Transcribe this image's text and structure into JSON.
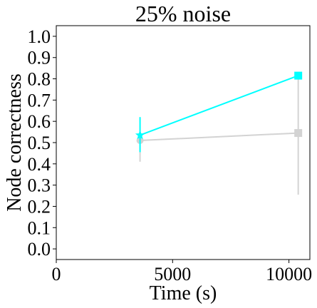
{
  "chart_data": {
    "type": "line",
    "title": "25% noise",
    "xlabel": "Time (s)",
    "ylabel": "Node correctness",
    "xlim": [
      0,
      10900
    ],
    "ylim": [
      -0.05,
      1.05
    ],
    "x_ticks": [
      0,
      5000,
      10000
    ],
    "x_tick_labels": [
      "0",
      "5000",
      "10000"
    ],
    "y_ticks": [
      0.0,
      0.1,
      0.2,
      0.3,
      0.4,
      0.5,
      0.6,
      0.7,
      0.8,
      0.9,
      1.0
    ],
    "y_tick_labels": [
      "0.0",
      "0.1",
      "0.2",
      "0.3",
      "0.4",
      "0.5",
      "0.6",
      "0.7",
      "0.8",
      "0.9",
      "1.0"
    ],
    "grid": false,
    "legend": "none",
    "series": [
      {
        "color": "#d3d3d3",
        "markers": [
          "circle",
          "square"
        ],
        "points": [
          {
            "x": 3600,
            "y": 0.51,
            "err_low": 0.41,
            "err_high": 0.52
          },
          {
            "x": 10400,
            "y": 0.545,
            "err_low": 0.255,
            "err_high": 0.81
          }
        ]
      },
      {
        "color": "#00ffff",
        "markers": [
          "star",
          "square"
        ],
        "points": [
          {
            "x": 3600,
            "y": 0.535,
            "err_low": 0.455,
            "err_high": 0.62
          },
          {
            "x": 10400,
            "y": 0.815,
            "err_low": 0.815,
            "err_high": 0.815
          }
        ]
      }
    ]
  }
}
